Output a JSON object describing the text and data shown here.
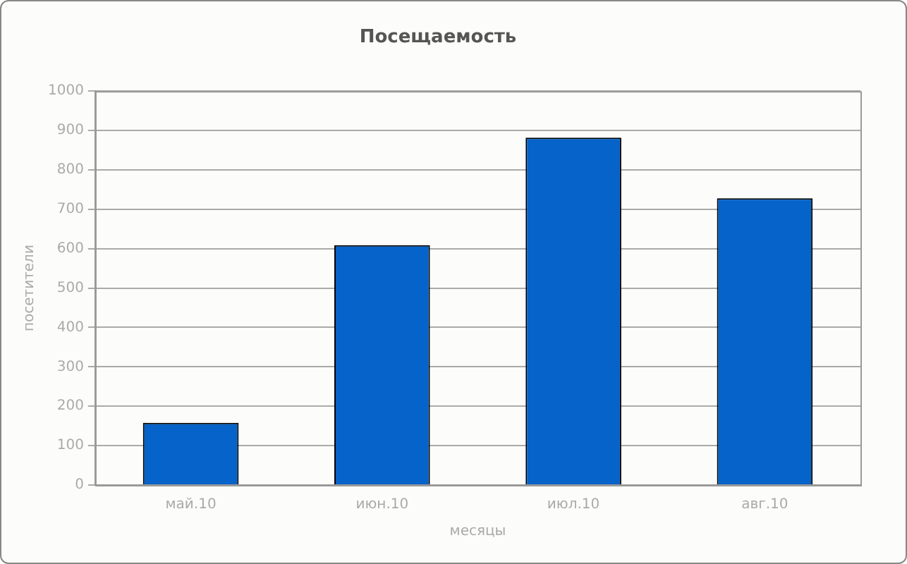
{
  "chart_data": {
    "type": "bar",
    "title": "Посещаемость",
    "xlabel": "месяцы",
    "ylabel": "посетители",
    "categories": [
      "май.10",
      "июн.10",
      "июл.10",
      "авг.10"
    ],
    "values": [
      158,
      609,
      882,
      728
    ],
    "color": "#0563c9",
    "ylim": [
      0,
      1000
    ],
    "yticks": [
      0,
      100,
      200,
      300,
      400,
      500,
      600,
      700,
      800,
      900,
      1000
    ],
    "grid": "y"
  }
}
